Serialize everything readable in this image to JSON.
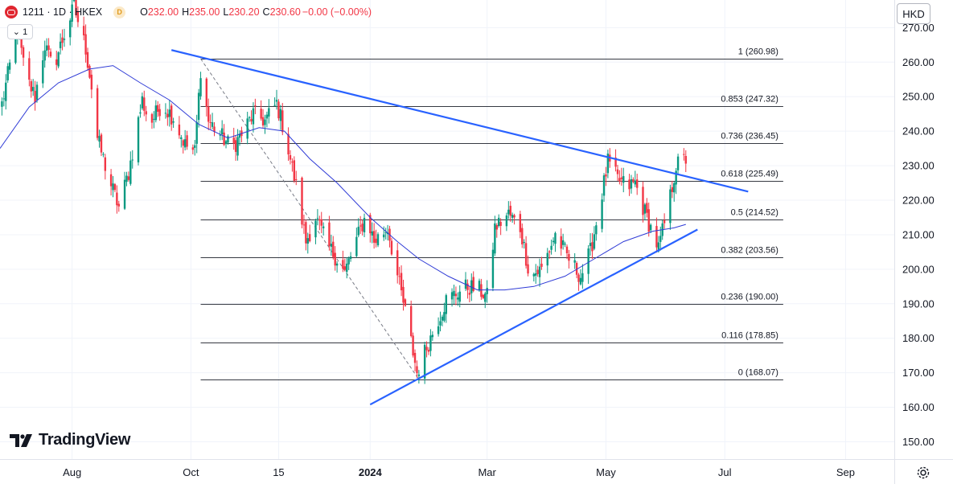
{
  "header": {
    "symbol": "1211 · 1D · HKEX",
    "badge": "D",
    "o_label": "O",
    "o_value": "232.00",
    "h_label": "H",
    "h_value": "235.00",
    "l_label": "L",
    "l_value": "230.20",
    "c_label": "C",
    "c_value": "230.60",
    "change": "−0.00 (−0.00%)"
  },
  "collapse_label": "⌄ 1",
  "currency": "HKD",
  "logo_text": "TradingView",
  "colors": {
    "up": "#089981",
    "down": "#f23645",
    "trendline": "#2962ff",
    "ma": "#2f3bd6",
    "fib": "#131722",
    "grid": "#f0f3fa"
  },
  "chart_data": {
    "type": "candlestick",
    "y_axis": {
      "min": 145,
      "max": 278,
      "ticks": [
        150,
        160,
        170,
        180,
        190,
        200,
        210,
        220,
        230,
        240,
        250,
        260,
        270
      ]
    },
    "y_tick_labels": [
      "150.00",
      "160.00",
      "170.00",
      "180.00",
      "190.00",
      "200.00",
      "210.00",
      "220.00",
      "230.00",
      "240.00",
      "250.00",
      "260.00",
      "270.00"
    ],
    "x_axis": {
      "start": "2023-06-25",
      "end": "2024-09-26",
      "labels": [
        {
          "date": "2023-08-01",
          "text": "Aug",
          "bold": false
        },
        {
          "date": "2023-10-01",
          "text": "Oct",
          "bold": false
        },
        {
          "date": "2023-11-15",
          "text": "15",
          "bold": false
        },
        {
          "date": "2024-01-01",
          "text": "2024",
          "bold": true
        },
        {
          "date": "2024-03-01",
          "text": "Mar",
          "bold": false
        },
        {
          "date": "2024-05-01",
          "text": "May",
          "bold": false
        },
        {
          "date": "2024-07-01",
          "text": "Jul",
          "bold": false
        },
        {
          "date": "2024-09-01",
          "text": "Sep",
          "bold": false
        }
      ]
    },
    "fib_levels": [
      {
        "level": "1",
        "value": 260.98,
        "label": "1 (260.98)"
      },
      {
        "level": "0.853",
        "value": 247.32,
        "label": "0.853 (247.32)"
      },
      {
        "level": "0.736",
        "value": 236.45,
        "label": "0.736 (236.45)"
      },
      {
        "level": "0.618",
        "value": 225.49,
        "label": "0.618 (225.49)"
      },
      {
        "level": "0.5",
        "value": 214.52,
        "label": "0.5 (214.52)"
      },
      {
        "level": "0.382",
        "value": 203.56,
        "label": "0.382 (203.56)"
      },
      {
        "level": "0.236",
        "value": 190.0,
        "label": "0.236 (190.00)"
      },
      {
        "level": "0.116",
        "value": 178.85,
        "label": "0.116 (178.85)"
      },
      {
        "level": "0",
        "value": 168.07,
        "label": "0 (168.07)"
      }
    ],
    "fib_range": {
      "start": "2023-10-06",
      "end": "2024-07-31"
    },
    "fib_diagonal": {
      "from": {
        "date": "2023-10-06",
        "value": 260.98
      },
      "to": {
        "date": "2024-01-26",
        "value": 168.07
      }
    },
    "trendlines": [
      {
        "name": "resistance",
        "from": {
          "date": "2023-09-21",
          "value": 263.5
        },
        "to": {
          "date": "2024-07-13",
          "value": 222.5
        }
      },
      {
        "name": "support",
        "from": {
          "date": "2024-01-01",
          "value": 160.8
        },
        "to": {
          "date": "2024-06-17",
          "value": 211.5
        }
      }
    ],
    "anchors": [
      [
        "2023-06-25",
        245
      ],
      [
        "2023-07-04",
        270
      ],
      [
        "2023-07-08",
        256
      ],
      [
        "2023-07-13",
        250
      ],
      [
        "2023-07-18",
        265
      ],
      [
        "2023-07-22",
        258
      ],
      [
        "2023-07-28",
        268
      ],
      [
        "2023-08-02",
        276
      ],
      [
        "2023-08-08",
        264
      ],
      [
        "2023-08-12",
        249
      ],
      [
        "2023-08-14",
        238
      ],
      [
        "2023-08-20",
        226
      ],
      [
        "2023-08-25",
        218
      ],
      [
        "2023-08-30",
        228
      ],
      [
        "2023-09-06",
        249
      ],
      [
        "2023-09-10",
        242
      ],
      [
        "2023-09-16",
        248
      ],
      [
        "2023-09-22",
        244
      ],
      [
        "2023-09-28",
        236
      ],
      [
        "2023-10-03",
        234
      ],
      [
        "2023-10-06",
        258
      ],
      [
        "2023-10-10",
        243
      ],
      [
        "2023-10-16",
        239
      ],
      [
        "2023-10-22",
        235
      ],
      [
        "2023-10-28",
        240
      ],
      [
        "2023-11-02",
        245
      ],
      [
        "2023-11-08",
        243
      ],
      [
        "2023-11-14",
        248
      ],
      [
        "2023-11-18",
        240
      ],
      [
        "2023-11-24",
        224
      ],
      [
        "2023-11-29",
        208
      ],
      [
        "2023-12-04",
        215
      ],
      [
        "2023-12-10",
        207
      ],
      [
        "2023-12-15",
        203
      ],
      [
        "2023-12-19",
        199
      ],
      [
        "2023-12-24",
        207
      ],
      [
        "2023-12-30",
        216
      ],
      [
        "2024-01-03",
        208
      ],
      [
        "2024-01-10",
        212
      ],
      [
        "2024-01-15",
        198
      ],
      [
        "2024-01-20",
        185
      ],
      [
        "2024-01-25",
        170
      ],
      [
        "2024-01-29",
        176
      ],
      [
        "2024-02-03",
        183
      ],
      [
        "2024-02-09",
        191
      ],
      [
        "2024-02-14",
        193
      ],
      [
        "2024-02-20",
        195
      ],
      [
        "2024-02-26",
        194
      ],
      [
        "2024-03-01",
        192
      ],
      [
        "2024-03-05",
        212
      ],
      [
        "2024-03-12",
        216
      ],
      [
        "2024-03-18",
        212
      ],
      [
        "2024-03-23",
        198
      ],
      [
        "2024-03-29",
        200
      ],
      [
        "2024-04-05",
        210
      ],
      [
        "2024-04-12",
        203
      ],
      [
        "2024-04-18",
        198
      ],
      [
        "2024-04-23",
        205
      ],
      [
        "2024-04-28",
        219
      ],
      [
        "2024-05-02",
        231
      ],
      [
        "2024-05-07",
        226
      ],
      [
        "2024-05-12",
        224
      ],
      [
        "2024-05-16",
        225
      ],
      [
        "2024-05-20",
        218
      ],
      [
        "2024-05-24",
        212
      ],
      [
        "2024-05-28",
        206
      ],
      [
        "2024-06-02",
        218
      ],
      [
        "2024-06-06",
        230
      ],
      [
        "2024-06-11",
        232
      ]
    ],
    "ma_points": [
      [
        "2023-06-25",
        235
      ],
      [
        "2023-07-10",
        247
      ],
      [
        "2023-07-25",
        254
      ],
      [
        "2023-08-10",
        258
      ],
      [
        "2023-08-22",
        259
      ],
      [
        "2023-09-05",
        254
      ],
      [
        "2023-09-20",
        249
      ],
      [
        "2023-10-05",
        242
      ],
      [
        "2023-10-20",
        238
      ],
      [
        "2023-11-05",
        241
      ],
      [
        "2023-11-18",
        240
      ],
      [
        "2023-12-01",
        232
      ],
      [
        "2023-12-15",
        225
      ],
      [
        "2024-01-01",
        215
      ],
      [
        "2024-01-15",
        208
      ],
      [
        "2024-01-26",
        203
      ],
      [
        "2024-02-10",
        198
      ],
      [
        "2024-02-25",
        194
      ],
      [
        "2024-03-10",
        194
      ],
      [
        "2024-03-25",
        195
      ],
      [
        "2024-04-10",
        198
      ],
      [
        "2024-04-25",
        203
      ],
      [
        "2024-05-10",
        208
      ],
      [
        "2024-05-25",
        211
      ],
      [
        "2024-06-05",
        212
      ],
      [
        "2024-06-11",
        213
      ]
    ]
  }
}
